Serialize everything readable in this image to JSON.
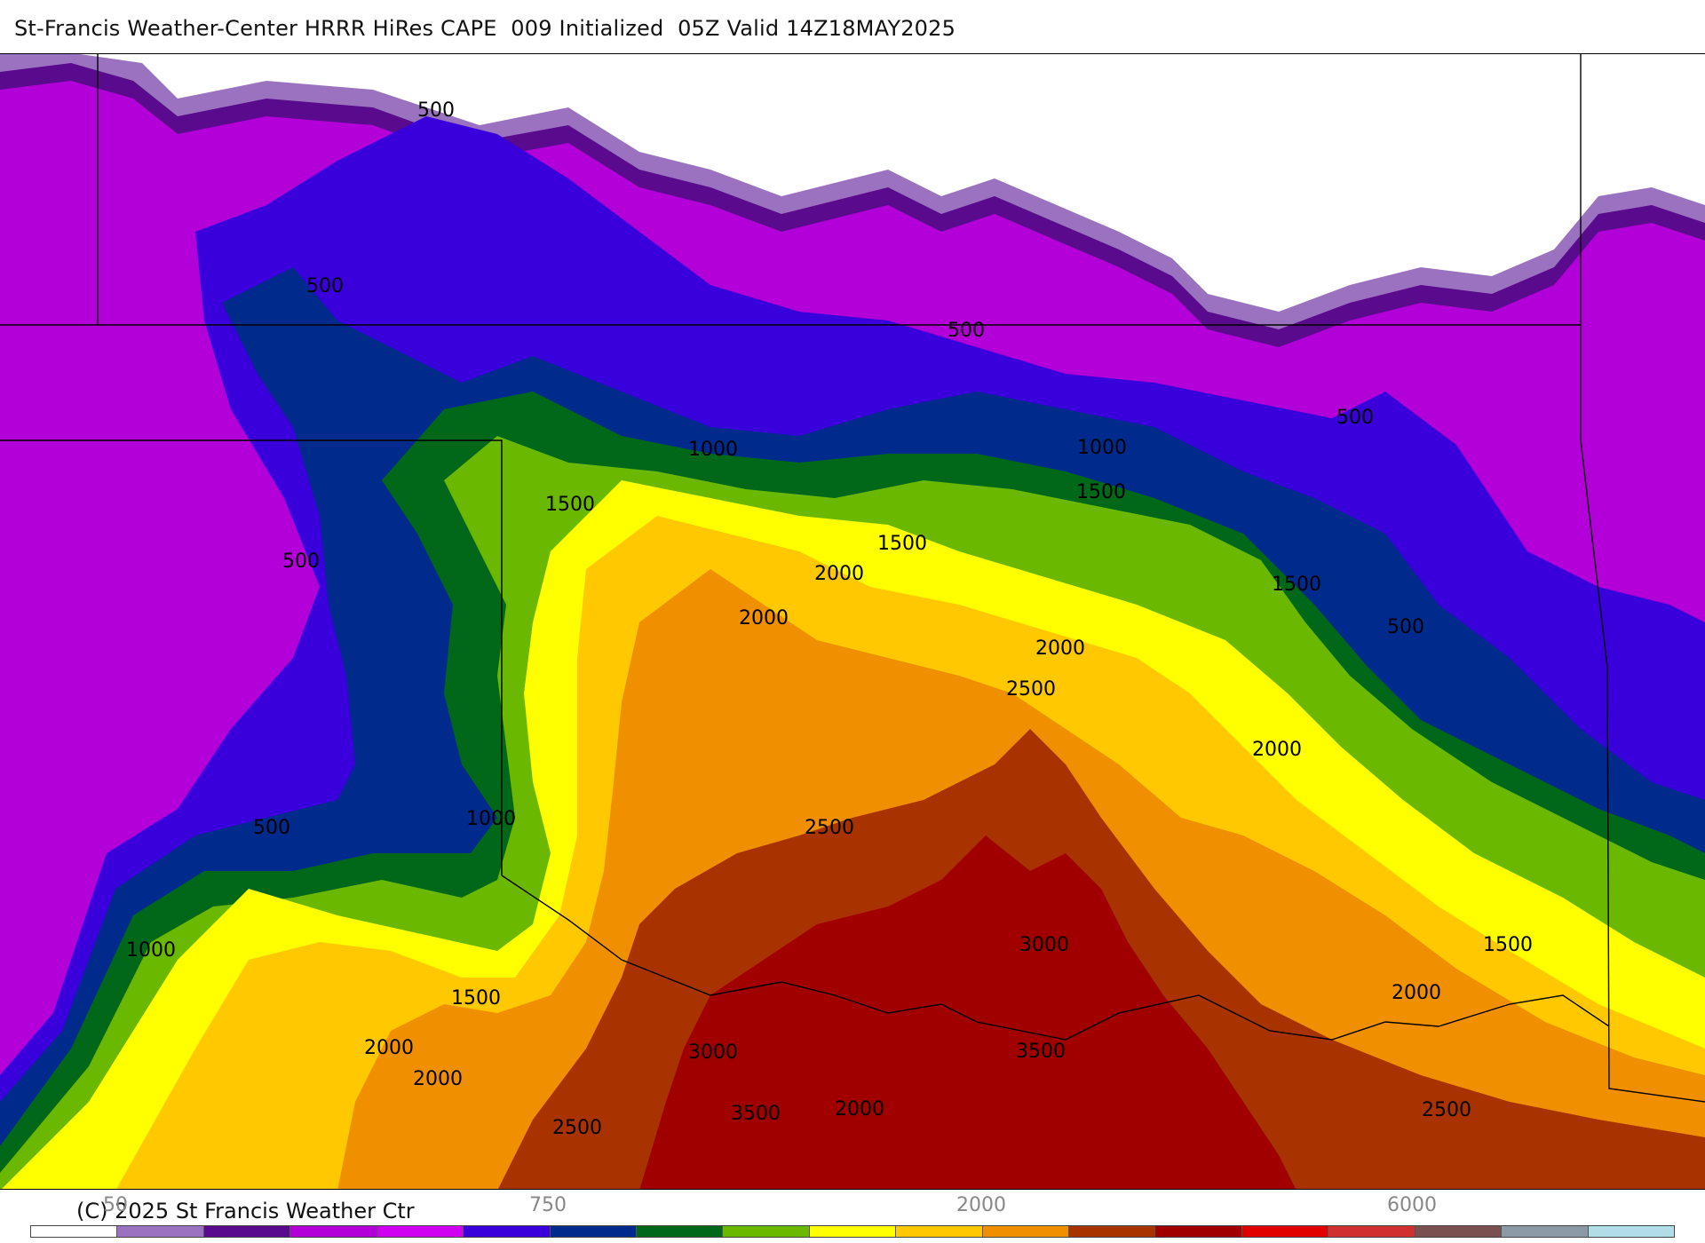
{
  "header": {
    "title": "St-Francis Weather-Center HRRR HiRes CAPE  009 Initialized  05Z Valid 14Z18MAY2025"
  },
  "footer": {
    "copyright": "(C) 2025 St Francis Weather Ctr"
  },
  "colorbar": {
    "colors": [
      "#ffffff",
      "#9b72c0",
      "#5a0a8c",
      "#b400d8",
      "#d000f0",
      "#3a00dc",
      "#002a8c",
      "#006818",
      "#6ab800",
      "#ffff00",
      "#ffc800",
      "#f09000",
      "#a83200",
      "#a00000",
      "#e00000",
      "#d03030",
      "#7a5050",
      "#8c9aa8",
      "#b0dde8"
    ],
    "tick_labels": [
      "50",
      "750",
      "2000",
      "6000"
    ]
  },
  "map": {
    "colors": {
      "white": "#ffffff",
      "lavender": "#9b72c0",
      "dark_purple": "#5a0a8c",
      "magenta": "#b400d8",
      "violet": "#3a00dc",
      "navy": "#002a8c",
      "dark_green": "#006818",
      "green": "#6ab800",
      "yellow": "#ffff00",
      "gold": "#ffc800",
      "orange": "#f09000",
      "rust": "#a83200",
      "dark_red": "#a00000"
    },
    "contour_labels": [
      "500",
      "500",
      "500",
      "500",
      "500",
      "500",
      "500",
      "1000",
      "1000",
      "1000",
      "1000",
      "1500",
      "1500",
      "1500",
      "1500",
      "1500",
      "2000",
      "2000",
      "2000",
      "2000",
      "2000",
      "2000",
      "2000",
      "2000",
      "2500",
      "2500",
      "2500",
      "2500",
      "3000",
      "3000",
      "3500",
      "3500",
      "1500"
    ]
  }
}
